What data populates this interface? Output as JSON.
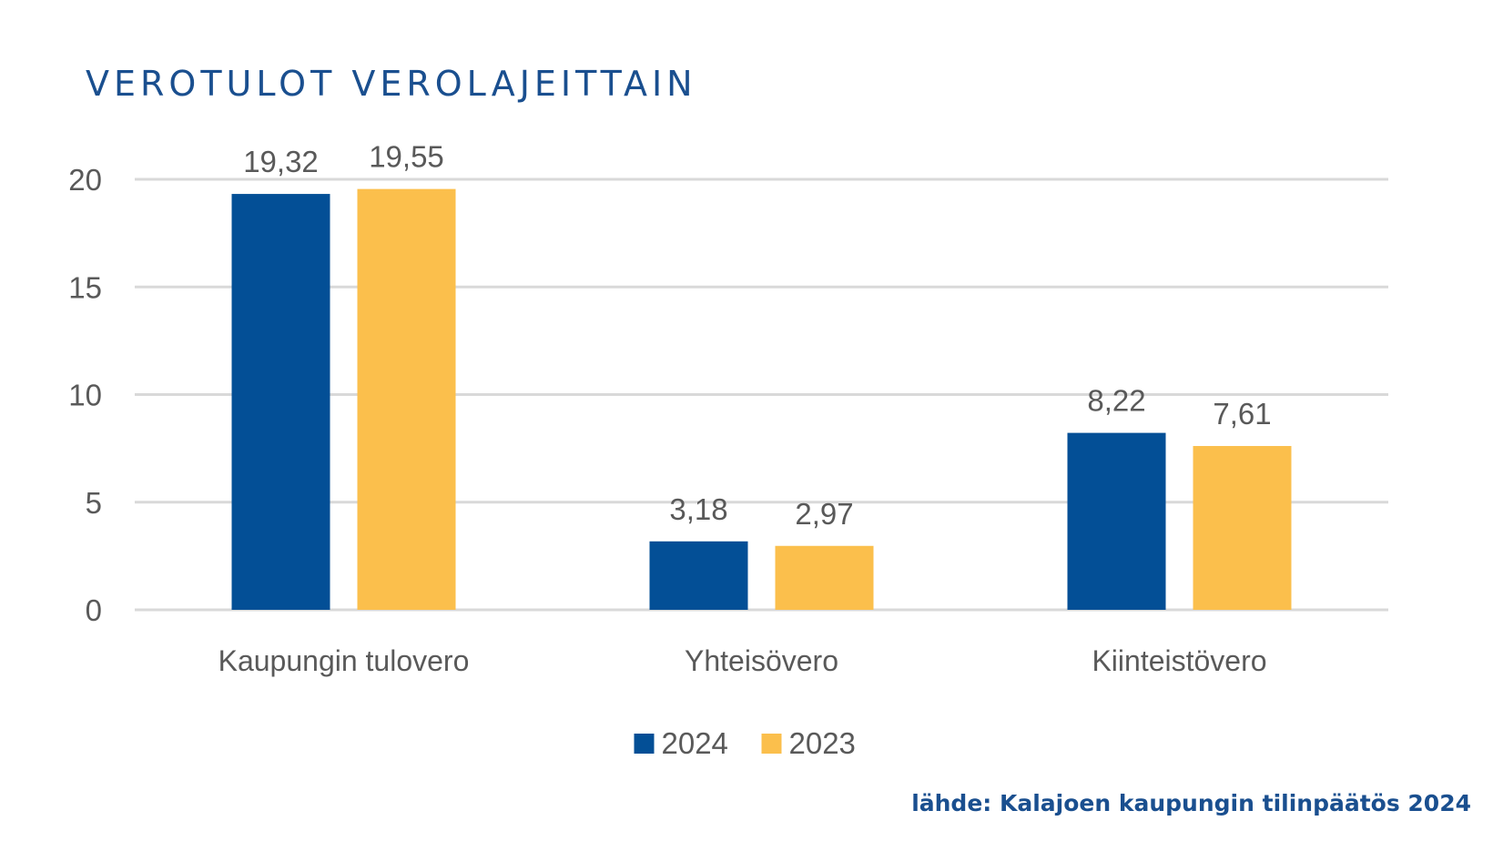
{
  "title": "VEROTULOT VEROLAJEITTAIN",
  "source": "lähde: Kalajoen kaupungin tilinpäätös 2024",
  "colors": {
    "title": "#1a4f8f",
    "grid": "#d9d9d9",
    "text": "#595959"
  },
  "chart_data": {
    "type": "bar",
    "categories": [
      "Kaupungin tulovero",
      "Yhteisövero",
      "Kiinteistövero"
    ],
    "series": [
      {
        "name": "2024",
        "color": "#034f96",
        "values": [
          19.32,
          3.18,
          8.22
        ],
        "labels": [
          "19,32",
          "3,18",
          "8,22"
        ]
      },
      {
        "name": "2023",
        "color": "#fbbf4c",
        "values": [
          19.55,
          2.97,
          7.61
        ],
        "labels": [
          "19,55",
          "2,97",
          "7,61"
        ]
      }
    ],
    "ylim": [
      0,
      20
    ],
    "yticks": [
      0,
      5,
      10,
      15,
      20
    ],
    "ytick_labels": [
      "0",
      "5",
      "10",
      "15",
      "20"
    ],
    "grid": true,
    "legend_position": "bottom",
    "xlabel": "",
    "ylabel": ""
  }
}
